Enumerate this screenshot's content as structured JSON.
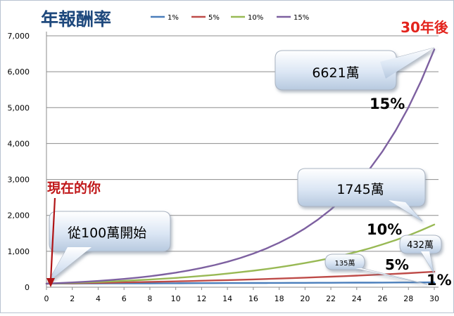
{
  "chart_data": {
    "type": "line",
    "title": "年報酬率",
    "x": [
      0,
      1,
      2,
      3,
      4,
      5,
      6,
      7,
      8,
      9,
      10,
      11,
      12,
      13,
      14,
      15,
      16,
      17,
      18,
      19,
      20,
      21,
      22,
      23,
      24,
      25,
      26,
      27,
      28,
      29,
      30
    ],
    "x_ticks": [
      "0",
      "2",
      "4",
      "6",
      "8",
      "10",
      "12",
      "14",
      "16",
      "18",
      "20",
      "22",
      "24",
      "26",
      "28",
      "30"
    ],
    "y_ticks": [
      "0",
      "1,000",
      "2,000",
      "3,000",
      "4,000",
      "5,000",
      "6,000",
      "7,000"
    ],
    "xlim": [
      0,
      30
    ],
    "ylim": [
      0,
      7000
    ],
    "grid": true,
    "legend_position": "top",
    "series": [
      {
        "name": "1%",
        "color": "#4a7ebb",
        "values": [
          100,
          101,
          102,
          103,
          104,
          105,
          106,
          107,
          108,
          109,
          110,
          112,
          113,
          114,
          115,
          116,
          117,
          118,
          120,
          121,
          122,
          123,
          124,
          126,
          127,
          128,
          130,
          131,
          132,
          133,
          135
        ]
      },
      {
        "name": "5%",
        "color": "#be4b48",
        "values": [
          100,
          105,
          110,
          116,
          122,
          128,
          134,
          141,
          148,
          155,
          163,
          171,
          180,
          189,
          198,
          208,
          218,
          229,
          241,
          253,
          265,
          279,
          293,
          307,
          323,
          339,
          356,
          373,
          392,
          412,
          432
        ]
      },
      {
        "name": "10%",
        "color": "#98b954",
        "values": [
          100,
          110,
          121,
          133,
          146,
          161,
          177,
          195,
          214,
          236,
          259,
          285,
          314,
          345,
          380,
          418,
          459,
          505,
          556,
          612,
          673,
          740,
          814,
          895,
          985,
          1083,
          1192,
          1311,
          1442,
          1586,
          1745
        ]
      },
      {
        "name": "15%",
        "color": "#7d60a0",
        "values": [
          100,
          115,
          132,
          152,
          175,
          201,
          231,
          266,
          306,
          352,
          405,
          465,
          535,
          615,
          708,
          814,
          936,
          1076,
          1238,
          1423,
          1637,
          1882,
          2164,
          2489,
          2863,
          3292,
          3786,
          4354,
          5007,
          5758,
          6621
        ]
      }
    ],
    "annotations": {
      "years_label": "30年後",
      "now_label": "現在的你",
      "callout_start": "從100萬開始",
      "callout_15": "6621萬",
      "callout_10": "1745萬",
      "callout_5": "432萬",
      "callout_1": "135萬",
      "pct_15": "15%",
      "pct_10": "10%",
      "pct_5": "5%",
      "pct_1": "1%"
    }
  }
}
